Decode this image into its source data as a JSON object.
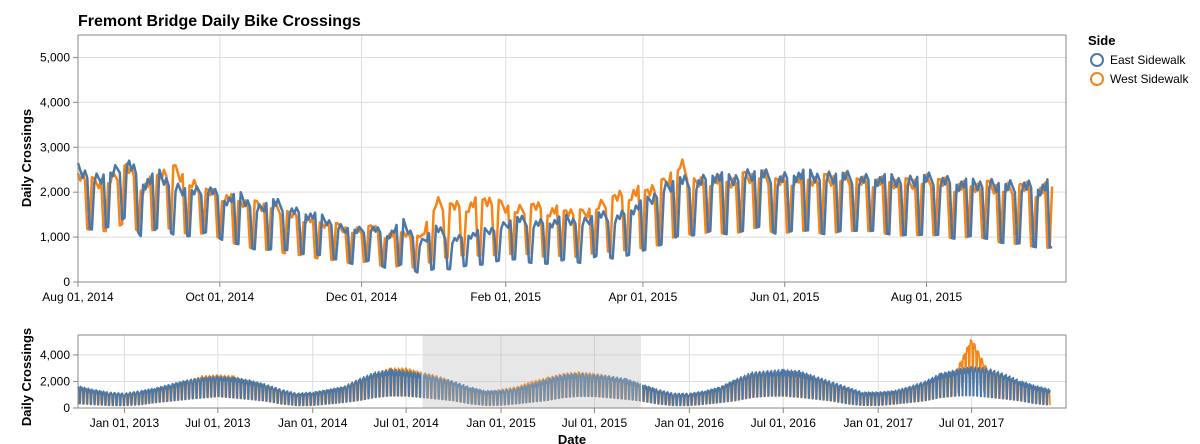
{
  "chart_data": [
    {
      "type": "line",
      "title": "Fremont Bridge Daily Bike Crossings",
      "xlabel": "",
      "ylabel": "Daily Crossings",
      "xlim": [
        "2014-08-01",
        "2015-09-30"
      ],
      "ylim": [
        0,
        5500
      ],
      "y_ticks": [
        0,
        1000,
        2000,
        3000,
        4000,
        5000
      ],
      "y_tick_labels": [
        "0",
        "1,000",
        "2,000",
        "3,000",
        "4,000",
        "5,000"
      ],
      "x_ticks": [
        "2014-08-01",
        "2014-10-01",
        "2014-12-01",
        "2015-02-01",
        "2015-04-01",
        "2015-06-01",
        "2015-08-01"
      ],
      "x_tick_labels": [
        "Aug 01, 2014",
        "Oct 01, 2014",
        "Dec 01, 2014",
        "Feb 01, 2015",
        "Apr 01, 2015",
        "Jun 01, 2015",
        "Aug 01, 2015"
      ],
      "grid": true,
      "interval": "weekly",
      "x": [
        "2014-08-01",
        "2014-08-08",
        "2014-08-15",
        "2014-08-22",
        "2014-08-29",
        "2014-09-05",
        "2014-09-12",
        "2014-09-19",
        "2014-09-26",
        "2014-10-03",
        "2014-10-10",
        "2014-10-17",
        "2014-10-24",
        "2014-10-31",
        "2014-11-07",
        "2014-11-14",
        "2014-11-21",
        "2014-11-28",
        "2014-12-05",
        "2014-12-12",
        "2014-12-19",
        "2014-12-26",
        "2015-01-02",
        "2015-01-09",
        "2015-01-16",
        "2015-01-23",
        "2015-01-30",
        "2015-02-06",
        "2015-02-13",
        "2015-02-20",
        "2015-02-27",
        "2015-03-06",
        "2015-03-13",
        "2015-03-20",
        "2015-03-27",
        "2015-04-03",
        "2015-04-10",
        "2015-04-17",
        "2015-04-24",
        "2015-05-01",
        "2015-05-08",
        "2015-05-15",
        "2015-05-22",
        "2015-05-29",
        "2015-06-05",
        "2015-06-12",
        "2015-06-19",
        "2015-06-26",
        "2015-07-03",
        "2015-07-10",
        "2015-07-17",
        "2015-07-24",
        "2015-07-31",
        "2015-08-07",
        "2015-08-14",
        "2015-08-21",
        "2015-08-28",
        "2015-09-04",
        "2015-09-11",
        "2015-09-18",
        "2015-09-25"
      ],
      "series": [
        {
          "name": "East Sidewalk",
          "color": "#4c78a8",
          "high": [
            2650,
            2400,
            2500,
            2850,
            2300,
            2500,
            2200,
            2100,
            2200,
            1900,
            2000,
            1700,
            1900,
            1700,
            1600,
            1500,
            1300,
            1200,
            1300,
            1100,
            1400,
            900,
            1300,
            1000,
            1100,
            1200,
            1300,
            1500,
            1400,
            1400,
            1500,
            1400,
            1600,
            1500,
            1700,
            1900,
            2200,
            2400,
            2300,
            2500,
            2400,
            2500,
            2550,
            2400,
            2500,
            2500,
            2450,
            2500,
            2400,
            2400,
            2400,
            2350,
            2450,
            2400,
            2300,
            2300,
            2300,
            2250,
            2300,
            2200,
            2350
          ],
          "low": [
            1200,
            1000,
            1100,
            1300,
            800,
            1100,
            900,
            900,
            1000,
            800,
            700,
            600,
            600,
            600,
            500,
            500,
            400,
            300,
            400,
            200,
            300,
            100,
            200,
            200,
            300,
            300,
            400,
            400,
            300,
            300,
            400,
            300,
            500,
            400,
            500,
            600,
            700,
            900,
            900,
            1000,
            900,
            1000,
            1100,
            900,
            1000,
            1000,
            900,
            1000,
            1000,
            1000,
            900,
            900,
            900,
            900,
            800,
            900,
            800,
            700,
            700,
            600,
            600
          ]
        },
        {
          "name": "West Sidewalk",
          "color": "#f58518",
          "high": [
            2550,
            2300,
            2400,
            2700,
            2200,
            2550,
            2600,
            2300,
            2100,
            2000,
            1900,
            1800,
            1800,
            1600,
            1500,
            1400,
            1300,
            1200,
            1300,
            1100,
            1200,
            1000,
            1900,
            1800,
            1800,
            2000,
            1800,
            1700,
            1800,
            1700,
            1700,
            1600,
            1800,
            2000,
            2100,
            2200,
            2300,
            2800,
            2300,
            2400,
            2350,
            2450,
            2500,
            2350,
            2400,
            2400,
            2400,
            2450,
            2350,
            2350,
            2350,
            2300,
            2400,
            2350,
            2250,
            2250,
            2250,
            2200,
            2250,
            2150,
            2300
          ],
          "low": [
            1100,
            1000,
            1000,
            1200,
            900,
            1100,
            1000,
            900,
            1000,
            800,
            700,
            600,
            600,
            500,
            500,
            400,
            400,
            300,
            400,
            200,
            300,
            200,
            400,
            400,
            500,
            400,
            500,
            500,
            500,
            400,
            500,
            400,
            600,
            500,
            600,
            600,
            700,
            900,
            900,
            1000,
            900,
            1000,
            1100,
            900,
            1000,
            1000,
            900,
            1000,
            1000,
            1000,
            900,
            900,
            900,
            900,
            800,
            900,
            800,
            700,
            700,
            600,
            600
          ]
        }
      ]
    },
    {
      "type": "area",
      "title": "",
      "xlabel": "Date",
      "ylabel": "Daily Crossings",
      "xlim": [
        "2012-10-03",
        "2017-12-31"
      ],
      "ylim": [
        0,
        5500
      ],
      "y_ticks": [
        0,
        2000,
        4000
      ],
      "y_tick_labels": [
        "0",
        "2,000",
        "4,000"
      ],
      "x_ticks": [
        "2013-01-01",
        "2013-07-01",
        "2014-01-01",
        "2014-07-01",
        "2015-01-01",
        "2015-07-01",
        "2016-01-01",
        "2016-07-01",
        "2017-01-01",
        "2017-07-01"
      ],
      "x_tick_labels": [
        "Jan 01, 2013",
        "Jul 01, 2013",
        "Jan 01, 2014",
        "Jul 01, 2014",
        "Jan 01, 2015",
        "Jul 01, 2015",
        "Jan 01, 2016",
        "Jul 01, 2016",
        "Jan 01, 2017",
        "Jul 01, 2017"
      ],
      "brush": [
        "2014-08-01",
        "2015-09-30"
      ],
      "interval": "monthly",
      "x": [
        "2012-10",
        "2012-11",
        "2012-12",
        "2013-01",
        "2013-02",
        "2013-03",
        "2013-04",
        "2013-05",
        "2013-06",
        "2013-07",
        "2013-08",
        "2013-09",
        "2013-10",
        "2013-11",
        "2013-12",
        "2014-01",
        "2014-02",
        "2014-03",
        "2014-04",
        "2014-05",
        "2014-06",
        "2014-07",
        "2014-08",
        "2014-09",
        "2014-10",
        "2014-11",
        "2014-12",
        "2015-01",
        "2015-02",
        "2015-03",
        "2015-04",
        "2015-05",
        "2015-06",
        "2015-07",
        "2015-08",
        "2015-09",
        "2015-10",
        "2015-11",
        "2015-12",
        "2016-01",
        "2016-02",
        "2016-03",
        "2016-04",
        "2016-05",
        "2016-06",
        "2016-07",
        "2016-08",
        "2016-09",
        "2016-10",
        "2016-11",
        "2016-12",
        "2017-01",
        "2017-02",
        "2017-03",
        "2017-04",
        "2017-05",
        "2017-06",
        "2017-07",
        "2017-08",
        "2017-09",
        "2017-10",
        "2017-11",
        "2017-12"
      ],
      "series": [
        {
          "name": "East Sidewalk",
          "color": "#4c78a8",
          "high": [
            1700,
            1400,
            1200,
            1100,
            1300,
            1500,
            1800,
            2100,
            2300,
            2400,
            2300,
            2100,
            1800,
            1400,
            1100,
            1200,
            1400,
            1600,
            2200,
            2700,
            2900,
            2800,
            2600,
            2300,
            2000,
            1600,
            1300,
            1300,
            1500,
            1800,
            2200,
            2500,
            2600,
            2500,
            2400,
            2200,
            1800,
            1400,
            1100,
            1100,
            1300,
            1600,
            2200,
            2700,
            2800,
            2900,
            2800,
            2400,
            2000,
            1600,
            1200,
            1200,
            1300,
            1600,
            2000,
            2600,
            2900,
            3100,
            3000,
            2600,
            2100,
            1700,
            1400
          ],
          "low": [
            200,
            150,
            100,
            100,
            150,
            300,
            400,
            500,
            600,
            700,
            600,
            500,
            400,
            200,
            100,
            100,
            200,
            300,
            400,
            600,
            700,
            700,
            600,
            500,
            400,
            200,
            100,
            100,
            200,
            300,
            400,
            600,
            700,
            700,
            600,
            500,
            400,
            200,
            100,
            100,
            200,
            300,
            400,
            600,
            700,
            700,
            600,
            500,
            400,
            200,
            100,
            100,
            200,
            300,
            400,
            600,
            700,
            700,
            600,
            500,
            400,
            200,
            100
          ]
        },
        {
          "name": "West Sidewalk",
          "color": "#f58518",
          "high": [
            1600,
            1300,
            1100,
            1000,
            1200,
            1400,
            1700,
            2000,
            2400,
            2500,
            2400,
            2000,
            1700,
            1300,
            1000,
            1100,
            1300,
            1500,
            2100,
            2600,
            3000,
            3000,
            2700,
            2400,
            2000,
            1500,
            1200,
            1400,
            1600,
            2000,
            2300,
            2600,
            2700,
            2600,
            2400,
            2100,
            1700,
            1300,
            1000,
            1000,
            1200,
            1500,
            2100,
            2600,
            2700,
            2800,
            2700,
            2300,
            1900,
            1500,
            1100,
            1100,
            1200,
            1500,
            1900,
            2500,
            2800,
            5300,
            2900,
            2500,
            2000,
            1600,
            1300
          ],
          "low": [
            200,
            150,
            100,
            100,
            150,
            300,
            400,
            500,
            600,
            700,
            600,
            500,
            400,
            200,
            100,
            100,
            200,
            300,
            400,
            600,
            700,
            700,
            600,
            500,
            400,
            200,
            100,
            100,
            200,
            300,
            400,
            600,
            700,
            700,
            600,
            500,
            400,
            200,
            100,
            100,
            200,
            300,
            400,
            600,
            700,
            700,
            600,
            500,
            400,
            200,
            100,
            100,
            200,
            300,
            400,
            600,
            700,
            2500,
            600,
            500,
            400,
            200,
            100
          ]
        }
      ]
    }
  ],
  "legend": {
    "title": "Side",
    "placement": "top-right",
    "items": [
      {
        "label": "East Sidewalk",
        "color": "#4c78a8"
      },
      {
        "label": "West Sidewalk",
        "color": "#f58518"
      }
    ]
  }
}
